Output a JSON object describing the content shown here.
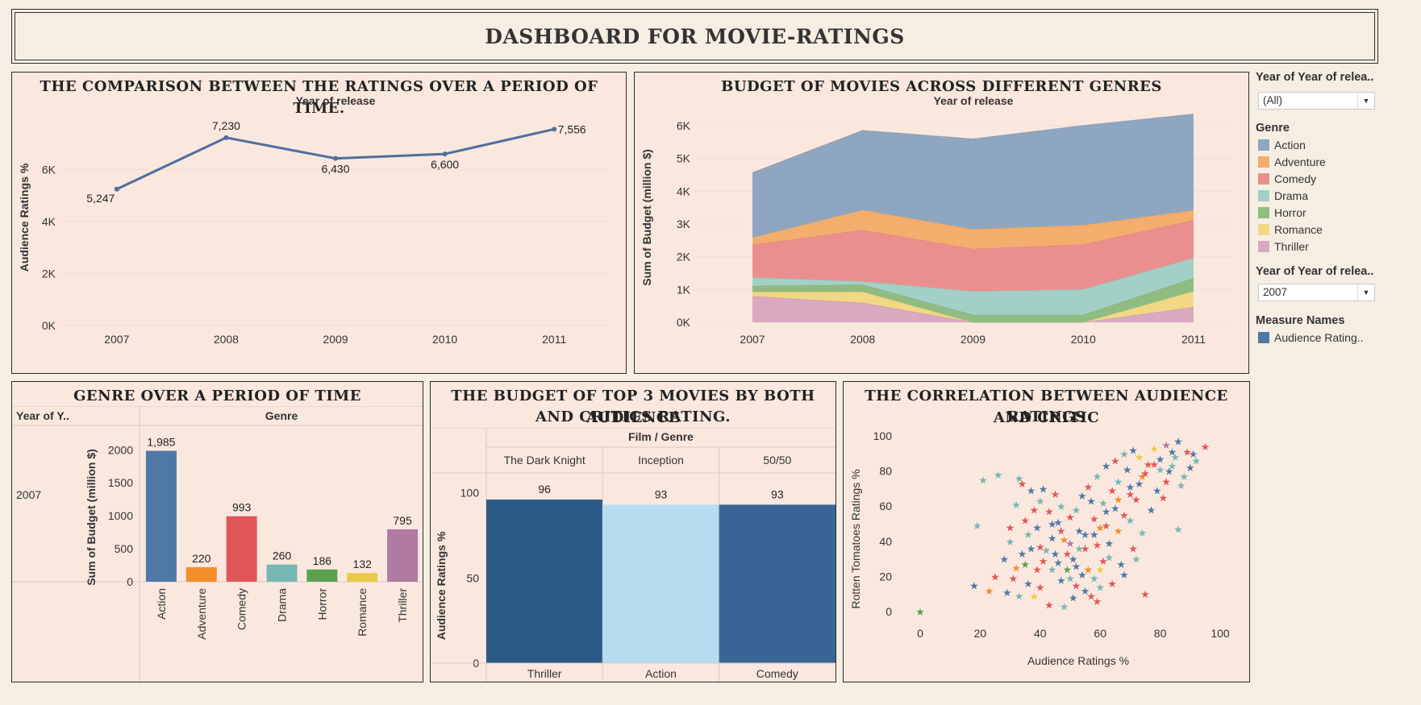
{
  "dashboard_title": "DASHBOARD FOR MOVIE-RATINGS",
  "sidebar": {
    "filter1": {
      "title": "Year of Year of relea..",
      "value": "(All)"
    },
    "genre_legend": {
      "title": "Genre",
      "items": [
        {
          "label": "Action",
          "color": "#8fa6c1"
        },
        {
          "label": "Adventure",
          "color": "#f4ad6c"
        },
        {
          "label": "Comedy",
          "color": "#ea8f8d"
        },
        {
          "label": "Drama",
          "color": "#a2cfc6"
        },
        {
          "label": "Horror",
          "color": "#8fbc80"
        },
        {
          "label": "Romance",
          "color": "#f2d884"
        },
        {
          "label": "Thriller",
          "color": "#d9a9c0"
        }
      ]
    },
    "filter2": {
      "title": "Year of Year of relea..",
      "value": "2007"
    },
    "measure_legend": {
      "title": "Measure Names",
      "items": [
        {
          "label": "Audience Rating..",
          "color": "#4e79a7"
        }
      ]
    }
  },
  "chart_data": [
    {
      "id": "line",
      "type": "line",
      "title": "THE COMPARISON BETWEEN THE RATINGS OVER A PERIOD OF TIME.",
      "xlabel": "Year of release",
      "ylabel": "Audience Ratings %",
      "x": [
        "2007",
        "2008",
        "2009",
        "2010",
        "2011"
      ],
      "values": [
        5247,
        7230,
        6430,
        6600,
        7556
      ],
      "value_labels": [
        "5,247",
        "7,230",
        "6,430",
        "6,600",
        "7,556"
      ],
      "yticks": [
        "0K",
        "2K",
        "4K",
        "6K"
      ],
      "ylim": [
        0,
        8000
      ],
      "color": "#4e6f9e"
    },
    {
      "id": "area",
      "type": "area",
      "title": "BUDGET OF MOVIES ACROSS DIFFERENT GENRES",
      "xlabel": "Year of release",
      "ylabel": "Sum of Budget (million $)",
      "x": [
        "2007",
        "2008",
        "2009",
        "2010",
        "2011"
      ],
      "yticks": [
        "0K",
        "1K",
        "2K",
        "3K",
        "4K",
        "5K",
        "6K"
      ],
      "ylim": [
        0,
        6000
      ],
      "series": [
        {
          "name": "Thriller",
          "values": [
            795,
            600,
            0,
            0,
            470
          ]
        },
        {
          "name": "Romance",
          "values": [
            132,
            330,
            0,
            0,
            480
          ]
        },
        {
          "name": "Horror",
          "values": [
            186,
            220,
            230,
            230,
            400
          ]
        },
        {
          "name": "Drama",
          "values": [
            260,
            100,
            720,
            780,
            620
          ]
        },
        {
          "name": "Comedy",
          "values": [
            993,
            1570,
            1290,
            1370,
            1150
          ]
        },
        {
          "name": "Adventure",
          "values": [
            220,
            610,
            600,
            590,
            300
          ]
        },
        {
          "name": "Action",
          "values": [
            1985,
            2430,
            2760,
            3040,
            2940
          ]
        }
      ]
    },
    {
      "id": "bar",
      "type": "bar",
      "title": "GENRE OVER A PERIOD OF TIME",
      "row_header": "Year of Y..",
      "row_value": "2007",
      "column_header": "Genre",
      "ylabel": "Sum of Budget (million $)",
      "categories": [
        "Action",
        "Adventure",
        "Comedy",
        "Drama",
        "Horror",
        "Romance",
        "Thriller"
      ],
      "values": [
        1985,
        220,
        993,
        260,
        186,
        132,
        795
      ],
      "value_labels": [
        "1,985",
        "220",
        "993",
        "260",
        "186",
        "132",
        "795"
      ],
      "colors": [
        "#4e79a7",
        "#f28e2b",
        "#e15759",
        "#76b7b2",
        "#59a14f",
        "#edc948",
        "#b07aa1"
      ],
      "yticks": [
        "0",
        "500",
        "1000",
        "1500",
        "2000"
      ],
      "ylim": [
        0,
        2150
      ]
    },
    {
      "id": "top3",
      "type": "bar",
      "title_line1": "THE BUDGET OF TOP 3 MOVIES BY BOTH AUDIENCE",
      "title_line2": "AND CRITICS RATING.",
      "header": "Film  /  Genre",
      "ylabel": "Audience Ratings %",
      "films": [
        "The Dark Knight",
        "Inception",
        "50/50"
      ],
      "genres": [
        "Thriller",
        "Action",
        "Comedy"
      ],
      "values": [
        96,
        93,
        93
      ],
      "value_labels": [
        "96",
        "93",
        "93"
      ],
      "colors": [
        "#2c5a86",
        "#b6dcf0",
        "#386596"
      ],
      "yticks": [
        "0",
        "50",
        "100"
      ],
      "ylim": [
        0,
        105
      ]
    },
    {
      "id": "scatter",
      "type": "scatter",
      "title_line1": "THE CORRELATION BETWEEN AUDIENCE AND CRITIC",
      "title_line2": "RATINGS",
      "xlabel": "Audience Ratings %",
      "ylabel": "Rotten Tomatoes Ratings %",
      "xlim": [
        0,
        100
      ],
      "ylim": [
        0,
        100
      ],
      "xticks": [
        "0",
        "20",
        "40",
        "60",
        "80",
        "100"
      ],
      "yticks": [
        "0",
        "20",
        "40",
        "60",
        "80",
        "100"
      ],
      "marker": "★",
      "series_colors": [
        "#4e79a7",
        "#e15759",
        "#76b7b2",
        "#f28e2b",
        "#59a14f",
        "#edc948",
        "#b07aa1"
      ],
      "points": [
        [
          0,
          0,
          4
        ],
        [
          26,
          78,
          2
        ],
        [
          33,
          76,
          2
        ],
        [
          19,
          49,
          2
        ],
        [
          21,
          75,
          2
        ],
        [
          18,
          15,
          0
        ],
        [
          95,
          94,
          1
        ],
        [
          92,
          86,
          2
        ],
        [
          86,
          97,
          0
        ],
        [
          82,
          95,
          6
        ],
        [
          91,
          90,
          0
        ],
        [
          78,
          93,
          5
        ],
        [
          88,
          77,
          2
        ],
        [
          75,
          10,
          1
        ],
        [
          86,
          47,
          2
        ],
        [
          48,
          3,
          2
        ],
        [
          32,
          25,
          3
        ],
        [
          40,
          14,
          1
        ],
        [
          44,
          42,
          0
        ],
        [
          52,
          26,
          0
        ],
        [
          55,
          36,
          1
        ],
        [
          60,
          48,
          3
        ],
        [
          62,
          57,
          0
        ],
        [
          64,
          69,
          1
        ],
        [
          66,
          74,
          2
        ],
        [
          69,
          81,
          0
        ],
        [
          72,
          64,
          1
        ],
        [
          70,
          52,
          2
        ],
        [
          57,
          63,
          0
        ],
        [
          50,
          54,
          1
        ],
        [
          47,
          60,
          2
        ],
        [
          45,
          67,
          1
        ],
        [
          41,
          70,
          0
        ],
        [
          38,
          58,
          1
        ],
        [
          36,
          44,
          2
        ],
        [
          34,
          33,
          0
        ],
        [
          31,
          19,
          1
        ],
        [
          29,
          11,
          0
        ],
        [
          38,
          9,
          5
        ],
        [
          43,
          4,
          1
        ],
        [
          51,
          8,
          0
        ],
        [
          58,
          19,
          2
        ],
        [
          61,
          29,
          1
        ],
        [
          63,
          39,
          0
        ],
        [
          66,
          46,
          3
        ],
        [
          68,
          55,
          1
        ],
        [
          73,
          73,
          0
        ],
        [
          76,
          84,
          1
        ],
        [
          80,
          87,
          0
        ],
        [
          84,
          83,
          2
        ],
        [
          54,
          21,
          0
        ],
        [
          56,
          24,
          3
        ],
        [
          49,
          33,
          1
        ],
        [
          46,
          28,
          0
        ],
        [
          42,
          35,
          2
        ],
        [
          39,
          48,
          0
        ],
        [
          35,
          52,
          1
        ],
        [
          32,
          61,
          2
        ],
        [
          53,
          46,
          0
        ],
        [
          58,
          53,
          1
        ],
        [
          61,
          62,
          2
        ],
        [
          65,
          59,
          0
        ],
        [
          70,
          67,
          1
        ],
        [
          74,
          77,
          3
        ],
        [
          79,
          69,
          0
        ],
        [
          82,
          74,
          1
        ],
        [
          85,
          88,
          2
        ],
        [
          89,
          91,
          1
        ],
        [
          52,
          15,
          1
        ],
        [
          47,
          18,
          0
        ],
        [
          44,
          24,
          2
        ],
        [
          41,
          29,
          1
        ],
        [
          37,
          36,
          0
        ],
        [
          48,
          41,
          3
        ],
        [
          55,
          44,
          0
        ],
        [
          59,
          38,
          1
        ],
        [
          63,
          31,
          2
        ],
        [
          67,
          27,
          0
        ],
        [
          71,
          36,
          1
        ],
        [
          74,
          45,
          2
        ],
        [
          77,
          58,
          0
        ],
        [
          81,
          65,
          1
        ],
        [
          87,
          72,
          2
        ],
        [
          90,
          82,
          0
        ],
        [
          60,
          14,
          2
        ],
        [
          57,
          9,
          1
        ],
        [
          50,
          39,
          6
        ],
        [
          46,
          51,
          0
        ],
        [
          43,
          57,
          1
        ],
        [
          40,
          63,
          2
        ],
        [
          37,
          69,
          0
        ],
        [
          34,
          73,
          1
        ],
        [
          30,
          40,
          2
        ],
        [
          28,
          30,
          0
        ],
        [
          25,
          20,
          1
        ],
        [
          23,
          12,
          3
        ],
        [
          52,
          58,
          2
        ],
        [
          54,
          66,
          0
        ],
        [
          56,
          71,
          1
        ],
        [
          59,
          77,
          2
        ],
        [
          62,
          83,
          0
        ],
        [
          65,
          86,
          1
        ],
        [
          68,
          90,
          2
        ],
        [
          71,
          92,
          0
        ],
        [
          73,
          88,
          5
        ],
        [
          78,
          84,
          1
        ],
        [
          83,
          80,
          0
        ],
        [
          49,
          24,
          4
        ],
        [
          51,
          30,
          0
        ],
        [
          53,
          36,
          2
        ],
        [
          47,
          46,
          1
        ],
        [
          44,
          50,
          0
        ],
        [
          60,
          24,
          5
        ],
        [
          64,
          16,
          1
        ],
        [
          68,
          21,
          0
        ],
        [
          72,
          30,
          2
        ],
        [
          58,
          44,
          0
        ],
        [
          62,
          49,
          1
        ],
        [
          66,
          64,
          3
        ],
        [
          70,
          71,
          0
        ],
        [
          75,
          79,
          1
        ],
        [
          80,
          81,
          2
        ],
        [
          84,
          91,
          0
        ],
        [
          39,
          24,
          1
        ],
        [
          36,
          16,
          0
        ],
        [
          33,
          9,
          2
        ],
        [
          30,
          48,
          1
        ],
        [
          35,
          27,
          4
        ],
        [
          40,
          37,
          1
        ],
        [
          45,
          33,
          0
        ],
        [
          50,
          19,
          2
        ],
        [
          55,
          12,
          0
        ],
        [
          59,
          6,
          1
        ]
      ]
    }
  ]
}
